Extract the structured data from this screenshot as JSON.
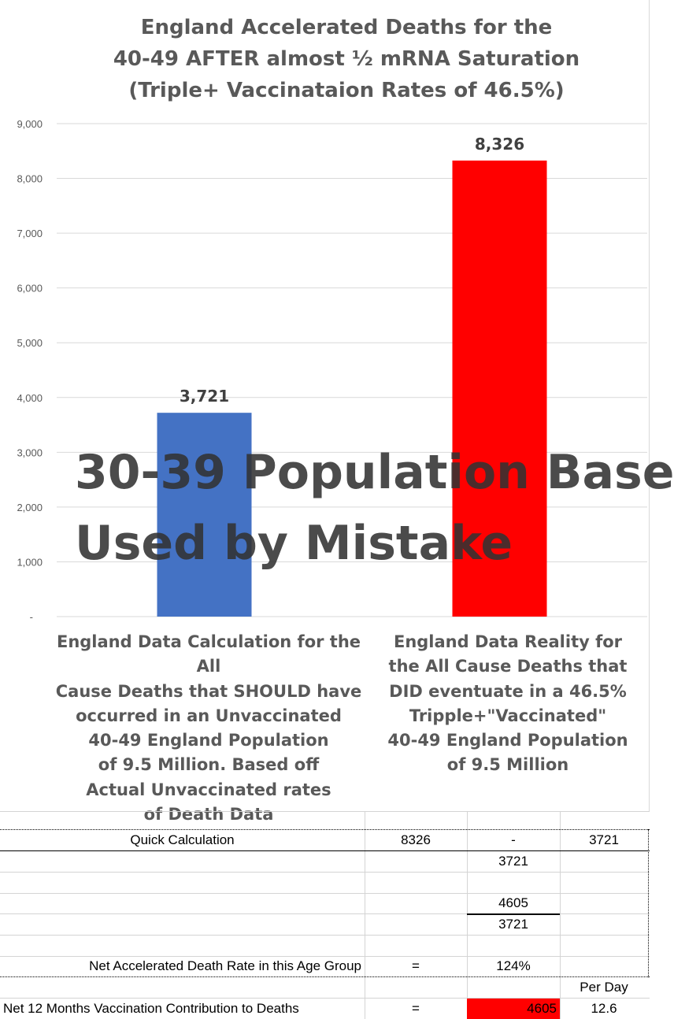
{
  "chart_data": {
    "type": "bar",
    "title_lines": [
      "England Accelerated Deaths for the",
      "40-49 AFTER almost ½ mRNA Saturation",
      "(Triple+ Vaccinataion Rates of 46.5%)"
    ],
    "categories": [
      "England Data Calculation for the All Cause Deaths that SHOULD have occurred in an Unvaccinated 40-49 England Population of 9.5 Million. Based off Actual Unvaccinated rates of Death Data",
      "England Data Reality for the All Cause Deaths that DID eventuate in a 46.5% Tripple+\"Vaccinated\" 40-49 England Population of 9.5 Million"
    ],
    "category_lines": [
      [
        "England Data Calculation for the All",
        "Cause Deaths that SHOULD have",
        "occurred in an Unvaccinated",
        "40-49 England Population",
        "of 9.5 Million. Based off",
        "Actual Unvaccinated rates",
        "of Death Data"
      ],
      [
        "England Data Reality for",
        "the All Cause Deaths that",
        "DID eventuate in a  46.5%",
        "Tripple+\"Vaccinated\"",
        "40-49 England Population",
        "of 9.5 Million"
      ]
    ],
    "values": [
      3721,
      8326
    ],
    "value_labels": [
      "3,721",
      "8,326"
    ],
    "bar_colors": [
      "#4472c4",
      "#ff0000"
    ],
    "ylim": [
      0,
      9000
    ],
    "yticks": [
      0,
      1000,
      2000,
      3000,
      4000,
      5000,
      6000,
      7000,
      8000,
      9000
    ],
    "ytick_labels": [
      "-",
      "1,000",
      "2,000",
      "3,000",
      "4,000",
      "5,000",
      "6,000",
      "7,000",
      "8,000",
      "9,000"
    ],
    "grid": true,
    "legend": "none",
    "xlabel": "",
    "ylabel": "",
    "overlay_text": [
      "30-39 Population Base",
      "Used by Mistake"
    ]
  },
  "table": {
    "quick_calc_label": "Quick Calculation",
    "r1_c1": "8326",
    "r1_c2": "-",
    "r1_c3": "3721",
    "r2_c2": "3721",
    "r4_c2": "4605",
    "r5_c2": "3721",
    "net_rate_label": "Net Accelerated Death Rate in this Age Group",
    "net_rate_eq": "=",
    "net_rate_value": "124%",
    "per_day_label": "Per Day",
    "net_12_label": "Net 12 Months Vaccination Contribution to Deaths",
    "net_12_eq": "=",
    "net_12_value": "4605",
    "net_12_per_day": "12.6",
    "highlight_color": "#ff0000"
  }
}
